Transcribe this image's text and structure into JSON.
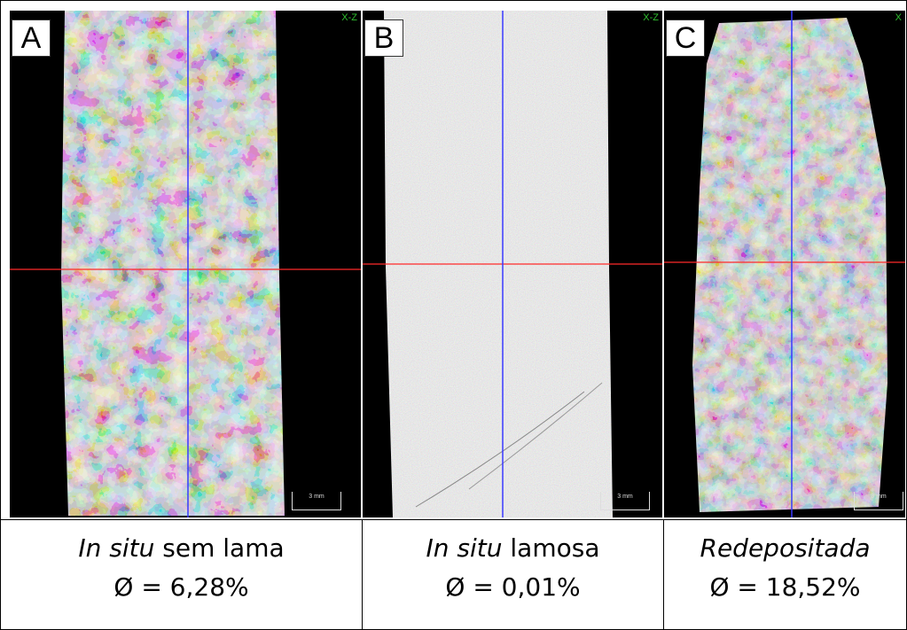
{
  "panels": [
    {
      "letter": "A",
      "view_tag": "X-Z",
      "scale_label": "3 mm",
      "caption_italic": "In situ",
      "caption_rest": " sem lama",
      "porosity": "Ø = 6,28%"
    },
    {
      "letter": "B",
      "view_tag": "X-Z",
      "scale_label": "3 mm",
      "caption_italic": "In situ",
      "caption_rest": " lamosa",
      "porosity": "Ø = 0,01%"
    },
    {
      "letter": "C",
      "view_tag": "X",
      "scale_label": "3 mm",
      "caption_italic": "Redepositada",
      "caption_rest": "",
      "porosity": "Ø = 18,52%"
    }
  ],
  "colors": {
    "crosshair_vertical": "#3a3aff",
    "crosshair_horizontal": "#ff2a2a",
    "view_tag": "#2fbf2f"
  }
}
